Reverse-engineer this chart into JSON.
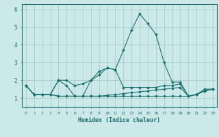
{
  "xlabel": "Humidex (Indice chaleur)",
  "ylabel": "",
  "bg_color": "#cce8e8",
  "grid_color": "#aacccc",
  "line_color": "#1a7070",
  "xlim": [
    -0.5,
    23.5
  ],
  "ylim": [
    0.5,
    6.3
  ],
  "x_ticks": [
    0,
    1,
    2,
    3,
    4,
    5,
    6,
    7,
    8,
    9,
    10,
    11,
    12,
    13,
    14,
    15,
    16,
    17,
    18,
    19,
    20,
    21,
    22,
    23
  ],
  "y_ticks": [
    1,
    2,
    3,
    4,
    5,
    6
  ],
  "series": [
    [
      1.7,
      1.2,
      1.2,
      1.2,
      2.0,
      1.7,
      1.1,
      1.1,
      2.0,
      2.3,
      2.7,
      2.6,
      3.7,
      4.85,
      5.75,
      5.2,
      4.6,
      3.0,
      1.9,
      1.9,
      1.1,
      1.2,
      1.5,
      1.5
    ],
    [
      1.7,
      1.2,
      1.2,
      1.2,
      2.0,
      2.0,
      1.7,
      1.8,
      2.0,
      2.5,
      2.7,
      2.6,
      1.6,
      1.6,
      1.6,
      1.6,
      1.6,
      1.7,
      1.7,
      1.8,
      1.1,
      1.2,
      1.4,
      1.5
    ],
    [
      1.7,
      1.2,
      1.2,
      1.2,
      1.1,
      1.1,
      1.1,
      1.1,
      1.1,
      1.1,
      1.1,
      1.1,
      1.1,
      1.1,
      1.1,
      1.1,
      1.1,
      1.1,
      1.1,
      1.1,
      1.1,
      1.2,
      1.4,
      1.5
    ],
    [
      1.7,
      1.2,
      1.2,
      1.2,
      1.1,
      1.1,
      1.1,
      1.1,
      1.1,
      1.1,
      1.15,
      1.2,
      1.25,
      1.3,
      1.35,
      1.4,
      1.45,
      1.5,
      1.55,
      1.6,
      1.1,
      1.2,
      1.4,
      1.5
    ]
  ],
  "marker": "D",
  "markersize": 2.0,
  "linewidth": 0.8
}
